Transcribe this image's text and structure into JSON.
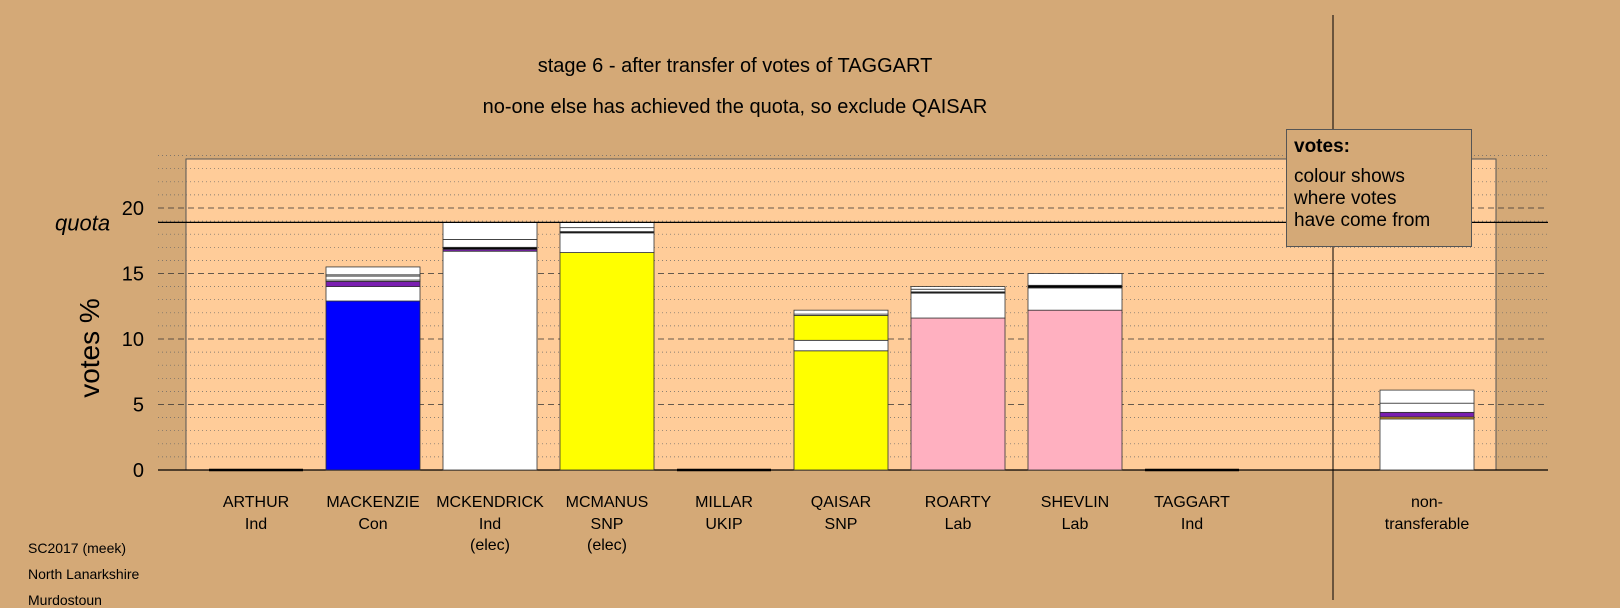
{
  "chart_data": {
    "type": "bar",
    "title": "stage 6 - after transfer of votes of TAGGART",
    "subtitle": "no-one else has achieved the quota, so exclude QAISAR",
    "ylabel": "votes %",
    "quota_label": "quota",
    "quota": 18.9,
    "ylim": [
      0,
      24
    ],
    "yticks": [
      0,
      5,
      10,
      15,
      20
    ],
    "grid": true,
    "candidates": [
      {
        "name": "ARTHUR",
        "party": "Ind",
        "status": "",
        "segments": []
      },
      {
        "name": "MACKENZIE",
        "party": "Con",
        "status": "",
        "segments": [
          {
            "value": 12.9,
            "color": "#0000ff"
          },
          {
            "value": 1.1,
            "color": "#ffffff"
          },
          {
            "value": 0.4,
            "color": "#7a1fb0"
          },
          {
            "value": 0.1,
            "color": "#ffffff"
          },
          {
            "value": 0.3,
            "color": "#ffffff"
          },
          {
            "value": 0.1,
            "color": "#ffffff"
          },
          {
            "value": 0.6,
            "color": "#ffffff"
          }
        ]
      },
      {
        "name": "MCKENDRICK",
        "party": "Ind",
        "status": "(elec)",
        "segments": [
          {
            "value": 16.7,
            "color": "#ffffff"
          },
          {
            "value": 0.15,
            "color": "#7a1fb0"
          },
          {
            "value": 0.15,
            "color": "#000000"
          },
          {
            "value": 0.6,
            "color": "#ffffff"
          },
          {
            "value": 1.3,
            "color": "#ffffff"
          }
        ]
      },
      {
        "name": "MCMANUS",
        "party": "SNP",
        "status": "(elec)",
        "segments": [
          {
            "value": 16.6,
            "color": "#ffff00"
          },
          {
            "value": 1.5,
            "color": "#ffffff"
          },
          {
            "value": 0.1,
            "color": "#000000"
          },
          {
            "value": 0.3,
            "color": "#ffffff"
          },
          {
            "value": 0.4,
            "color": "#ffffff"
          }
        ]
      },
      {
        "name": "MILLAR",
        "party": "UKIP",
        "status": "",
        "segments": []
      },
      {
        "name": "QAISAR",
        "party": "SNP",
        "status": "",
        "segments": [
          {
            "value": 9.1,
            "color": "#ffff00"
          },
          {
            "value": 0.8,
            "color": "#ffffff"
          },
          {
            "value": 1.9,
            "color": "#ffff00"
          },
          {
            "value": 0.1,
            "color": "#ffffff"
          },
          {
            "value": 0.3,
            "color": "#ffffff"
          }
        ]
      },
      {
        "name": "ROARTY",
        "party": "Lab",
        "status": "",
        "segments": [
          {
            "value": 11.6,
            "color": "#ffb0c0"
          },
          {
            "value": 1.9,
            "color": "#ffffff"
          },
          {
            "value": 0.1,
            "color": "#000000"
          },
          {
            "value": 0.2,
            "color": "#ffffff"
          },
          {
            "value": 0.2,
            "color": "#ffffff"
          }
        ]
      },
      {
        "name": "SHEVLIN",
        "party": "Lab",
        "status": "",
        "segments": [
          {
            "value": 12.2,
            "color": "#ffb0c0"
          },
          {
            "value": 1.7,
            "color": "#ffffff"
          },
          {
            "value": 0.2,
            "color": "#000000"
          },
          {
            "value": 0.9,
            "color": "#ffffff"
          }
        ]
      },
      {
        "name": "TAGGART",
        "party": "Ind",
        "status": "",
        "segments": []
      }
    ],
    "nontransferable": {
      "label_line1": "non-",
      "label_line2": "transferable",
      "segments": [
        {
          "value": 3.9,
          "color": "#ffffff"
        },
        {
          "value": 0.15,
          "color": "#e0a020"
        },
        {
          "value": 0.35,
          "color": "#7a1fb0"
        },
        {
          "value": 0.7,
          "color": "#ffffff"
        },
        {
          "value": 1.0,
          "color": "#ffffff"
        }
      ]
    }
  },
  "legend": {
    "title": "votes:",
    "lines": [
      "colour shows",
      "where votes",
      "have come from"
    ]
  },
  "footer": [
    "SC2017 (meek)",
    "North Lanarkshire",
    "Murdostoun"
  ],
  "colors": {
    "background": "#d4a977",
    "plot_area": "#ffcc99"
  }
}
